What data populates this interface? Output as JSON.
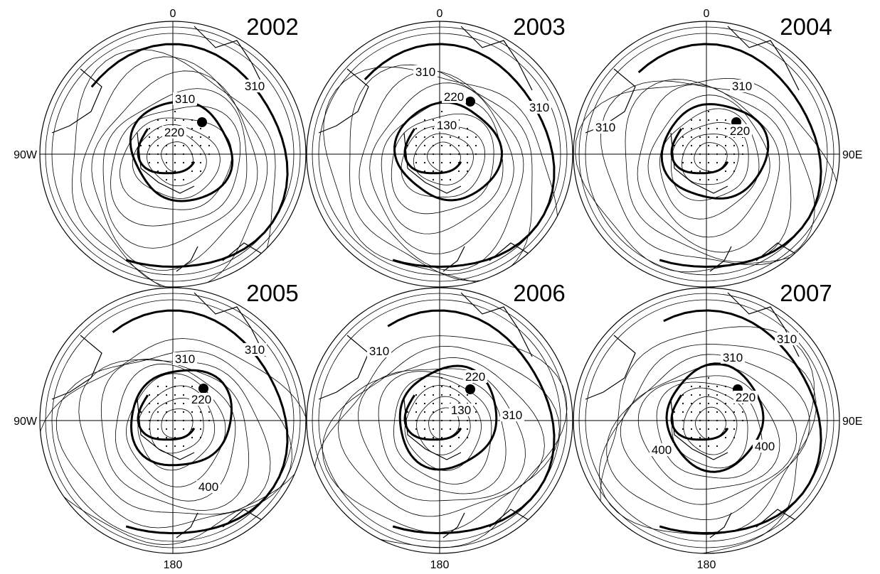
{
  "figure": {
    "panels": [
      {
        "year": "2002",
        "contour_labels": [
          "310",
          "310",
          "220"
        ],
        "top_label": "0",
        "left_label": "90W",
        "right_label": "",
        "bottom_label": ""
      },
      {
        "year": "2003",
        "contour_labels": [
          "310",
          "220",
          "310",
          "130"
        ],
        "top_label": "0",
        "left_label": "",
        "right_label": "",
        "bottom_label": ""
      },
      {
        "year": "2004",
        "contour_labels": [
          "310",
          "310",
          "220"
        ],
        "top_label": "0",
        "left_label": "",
        "right_label": "90E",
        "bottom_label": ""
      },
      {
        "year": "2005",
        "contour_labels": [
          "310",
          "310",
          "220",
          "400"
        ],
        "top_label": "",
        "left_label": "90W",
        "right_label": "",
        "bottom_label": "180"
      },
      {
        "year": "2006",
        "contour_labels": [
          "310",
          "220",
          "130",
          "310"
        ],
        "top_label": "",
        "left_label": "",
        "right_label": "",
        "bottom_label": "180"
      },
      {
        "year": "2007",
        "contour_labels": [
          "310",
          "310",
          "220",
          "400",
          "400"
        ],
        "top_label": "",
        "left_label": "",
        "right_label": "90E",
        "bottom_label": "180"
      }
    ]
  },
  "colors": {
    "line": "#000000",
    "background": "#ffffff"
  }
}
